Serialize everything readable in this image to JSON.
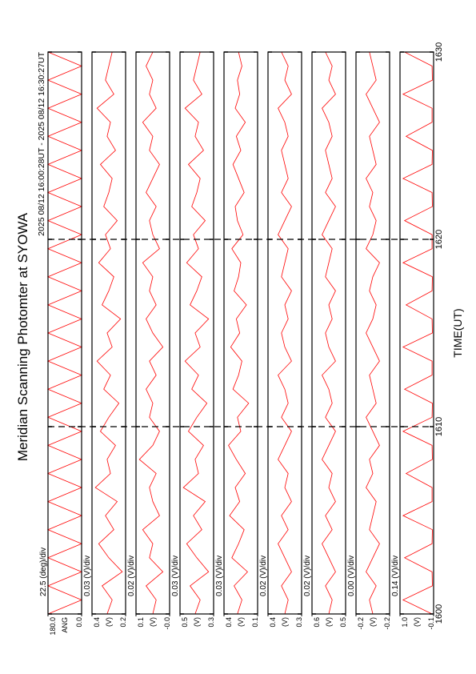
{
  "chart_data": {
    "type": "line",
    "title": "Meridian Scanning Photomter at SYOWA",
    "subtitle": "2025 08/12 16:00:28UT - 2025 08/12 16:30:27UT",
    "x_label": "TIME(UT)",
    "xlim": [
      1600,
      1630
    ],
    "xticks": [
      1600,
      1610,
      1620,
      1630
    ],
    "x": [
      1600,
      1600.75,
      1601.5,
      1602.25,
      1603,
      1603.75,
      1604.5,
      1605.25,
      1606,
      1606.75,
      1607.5,
      1608.25,
      1609,
      1609.75,
      1610.5,
      1611.25,
      1612,
      1612.75,
      1613.5,
      1614.25,
      1615,
      1615.75,
      1616.5,
      1617.25,
      1618,
      1618.75,
      1619.5,
      1620.25,
      1621,
      1621.75,
      1622.5,
      1623.25,
      1624,
      1624.75,
      1625.5,
      1626.25,
      1627,
      1627.75,
      1628.5,
      1629.25,
      1630
    ],
    "color": "#ff0000",
    "panels": [
      {
        "unit": "ANG",
        "scale": "22.5 (deg)/div",
        "ylim": [
          0,
          180
        ],
        "yticks": [
          {
            "value": 180,
            "label": "180.0"
          },
          {
            "value": 0,
            "label": "0.0"
          }
        ],
        "values": [
          180,
          0,
          180,
          0,
          180,
          0,
          180,
          0,
          180,
          0,
          180,
          0,
          180,
          0,
          180,
          0,
          180,
          0,
          180,
          0,
          180,
          0,
          180,
          0,
          180,
          0,
          180,
          0,
          180,
          0,
          180,
          0,
          180,
          0,
          180,
          0,
          180,
          0,
          180,
          0,
          180
        ]
      },
      {
        "unit": "(V)",
        "scale": "0.03 (V)/div",
        "ylim": [
          0.2,
          0.4
        ],
        "yticks": [
          0.4,
          0.2
        ],
        "values": [
          0.31,
          0.28,
          0.34,
          0.22,
          0.3,
          0.36,
          0.27,
          0.32,
          0.25,
          0.38,
          0.29,
          0.31,
          0.26,
          0.35,
          0.3,
          0.24,
          0.33,
          0.29,
          0.37,
          0.28,
          0.31,
          0.23,
          0.34,
          0.3,
          0.27,
          0.36,
          0.29,
          0.32,
          0.25,
          0.33,
          0.3,
          0.28,
          0.35,
          0.26,
          0.31,
          0.29,
          0.37,
          0.27,
          0.32,
          0.3,
          0.28
        ]
      },
      {
        "unit": "(V)",
        "scale": "0.02 (V)/div",
        "ylim": [
          0,
          0.1
        ],
        "yticks": [
          0.1,
          {
            "value": 0,
            "label": "-0.0"
          }
        ],
        "values": [
          0.05,
          0.04,
          0.07,
          0.02,
          0.06,
          0.05,
          0.08,
          0.03,
          0.05,
          0.06,
          0.04,
          0.09,
          0.05,
          0.03,
          0.06,
          0.05,
          0.07,
          0.04,
          0.06,
          0.02,
          0.05,
          0.07,
          0.04,
          0.06,
          0.05,
          0.08,
          0.03,
          0.05,
          0.06,
          0.04,
          0.07,
          0.05,
          0.03,
          0.06,
          0.05,
          0.08,
          0.04,
          0.06,
          0.05,
          0.07,
          0.05
        ]
      },
      {
        "unit": "(V)",
        "scale": "0.03 (V)/div",
        "ylim": [
          0.3,
          0.5
        ],
        "yticks": [
          0.5,
          0.3
        ],
        "values": [
          0.41,
          0.38,
          0.44,
          0.33,
          0.4,
          0.46,
          0.37,
          0.42,
          0.35,
          0.48,
          0.39,
          0.41,
          0.36,
          0.45,
          0.4,
          0.34,
          0.43,
          0.39,
          0.47,
          0.38,
          0.41,
          0.33,
          0.44,
          0.4,
          0.37,
          0.46,
          0.39,
          0.42,
          0.35,
          0.43,
          0.4,
          0.38,
          0.45,
          0.36,
          0.41,
          0.39,
          0.47,
          0.37,
          0.42,
          0.4,
          0.38
        ]
      },
      {
        "unit": "(V)",
        "scale": "0.03 (V)/div",
        "ylim": [
          0.1,
          0.4
        ],
        "yticks": [
          0.4,
          0.1
        ],
        "values": [
          0.28,
          0.24,
          0.31,
          0.19,
          0.33,
          0.27,
          0.22,
          0.35,
          0.26,
          0.3,
          0.21,
          0.29,
          0.36,
          0.25,
          0.28,
          0.18,
          0.32,
          0.27,
          0.24,
          0.34,
          0.26,
          0.29,
          0.2,
          0.31,
          0.27,
          0.25,
          0.33,
          0.23,
          0.28,
          0.3,
          0.22,
          0.27,
          0.32,
          0.25,
          0.29,
          0.21,
          0.3,
          0.26,
          0.28,
          0.24,
          0.27
        ]
      },
      {
        "unit": "(V)",
        "scale": "0.02 (V)/div",
        "ylim": [
          0.3,
          0.4
        ],
        "yticks": [
          0.4,
          0.3
        ],
        "values": [
          0.35,
          0.34,
          0.36,
          0.33,
          0.35,
          0.37,
          0.34,
          0.36,
          0.33,
          0.35,
          0.34,
          0.37,
          0.35,
          0.33,
          0.36,
          0.34,
          0.35,
          0.37,
          0.33,
          0.35,
          0.36,
          0.34,
          0.35,
          0.33,
          0.36,
          0.35,
          0.34,
          0.37,
          0.35,
          0.33,
          0.36,
          0.34,
          0.35,
          0.36,
          0.34,
          0.35,
          0.37,
          0.33,
          0.35,
          0.34,
          0.36
        ]
      },
      {
        "unit": "(V)",
        "scale": "0.02 (V)/div",
        "ylim": [
          0.5,
          0.6
        ],
        "yticks": [
          0.6,
          0.5
        ],
        "values": [
          0.55,
          0.54,
          0.56,
          0.53,
          0.55,
          0.57,
          0.54,
          0.56,
          0.53,
          0.55,
          0.54,
          0.57,
          0.55,
          0.53,
          0.56,
          0.54,
          0.55,
          0.57,
          0.53,
          0.55,
          0.56,
          0.54,
          0.55,
          0.53,
          0.56,
          0.55,
          0.54,
          0.57,
          0.55,
          0.53,
          0.56,
          0.54,
          0.55,
          0.56,
          0.54,
          0.55,
          0.57,
          0.53,
          0.55,
          0.54,
          0.56
        ]
      },
      {
        "unit": "(V)",
        "scale": "0.00 (V)/div",
        "ylim": [
          -0.205,
          -0.195
        ],
        "yticks": [
          {
            "value": -0.195,
            "label": "-0.2"
          },
          {
            "value": -0.205,
            "label": "-0.2"
          }
        ],
        "values": [
          -0.2,
          -0.199,
          -0.201,
          -0.198,
          -0.2,
          -0.202,
          -0.199,
          -0.2,
          -0.201,
          -0.198,
          -0.2,
          -0.199,
          -0.202,
          -0.2,
          -0.198,
          -0.201,
          -0.2,
          -0.199,
          -0.202,
          -0.2,
          -0.198,
          -0.2,
          -0.201,
          -0.199,
          -0.2,
          -0.202,
          -0.198,
          -0.2,
          -0.201,
          -0.199,
          -0.2,
          -0.198,
          -0.201,
          -0.2,
          -0.199,
          -0.202,
          -0.2,
          -0.198,
          -0.201,
          -0.2,
          -0.199
        ]
      },
      {
        "unit": "(V)",
        "scale": "0.14 (V)/div",
        "ylim": [
          -0.1,
          1
        ],
        "yticks": [
          {
            "value": 1,
            "label": "1.0"
          },
          -0.1
        ],
        "values": [
          -0.05,
          0.9,
          -0.06,
          -0.05,
          0.85,
          -0.05,
          -0.06,
          0.9,
          -0.05,
          -0.05,
          0.8,
          -0.06,
          -0.05,
          0.9,
          -0.05,
          -0.06,
          0.85,
          -0.05,
          -0.05,
          0.9,
          -0.06,
          -0.05,
          0.8,
          -0.05,
          -0.06,
          0.9,
          -0.05,
          -0.05,
          0.85,
          -0.06,
          -0.05,
          0.9,
          -0.05,
          -0.06,
          0.8,
          -0.05,
          -0.05,
          0.9,
          -0.06,
          -0.05,
          0.85
        ]
      }
    ]
  }
}
